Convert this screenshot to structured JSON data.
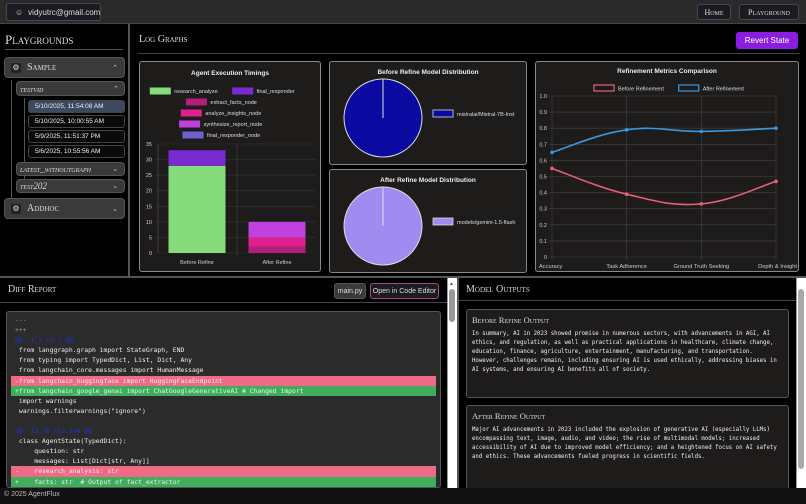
{
  "header": {
    "user_email": "vidyutrc@gmail.com",
    "nav": [
      "Home",
      "Playground"
    ]
  },
  "sidebar": {
    "title": "Playgrounds",
    "groups": [
      {
        "label": "Sample",
        "expanded": true,
        "items": [
          {
            "label": "testvid",
            "expanded": true,
            "runs": [
              "5/10/2025, 11:54:08 AM",
              "5/10/2025, 10:00:55 AM",
              "5/9/2025, 11:51:37 PM",
              "5/6/2025, 10:55:56 AM"
            ],
            "selected_run": 0
          },
          {
            "label": "latest_withoutgraph",
            "expanded": false
          },
          {
            "label": "test202",
            "expanded": false
          }
        ]
      },
      {
        "label": "Addhoc",
        "expanded": false
      }
    ]
  },
  "log_graphs": {
    "title": "Log Graphs",
    "revert_button": "Revert State",
    "accent": "#8a1ee0"
  },
  "chart_data": [
    {
      "type": "bar",
      "stacked": true,
      "title": "Agent Execution Timings",
      "categories": [
        "Before Refine",
        "After Refine"
      ],
      "ylim": [
        0,
        35
      ],
      "yticks": [
        0,
        5,
        10,
        15,
        20,
        25,
        30,
        35
      ],
      "legend": "top",
      "series": [
        {
          "name": "research_analyze",
          "color": "#86dc7c",
          "values": [
            28,
            0
          ]
        },
        {
          "name": "final_responder",
          "color": "#7a2bd0",
          "values": [
            5,
            0
          ]
        },
        {
          "name": "extract_facts_node",
          "color": "#b0207a",
          "values": [
            0,
            2
          ]
        },
        {
          "name": "analyze_insights_node",
          "color": "#e0208c",
          "values": [
            0,
            3
          ]
        },
        {
          "name": "synthesize_report_node",
          "color": "#c040e0",
          "values": [
            0,
            5
          ]
        },
        {
          "name": "final_responder_node",
          "color": "#7060d0",
          "values": [
            0,
            0
          ]
        }
      ]
    },
    {
      "type": "pie",
      "title": "Before Refine Model Distribution",
      "legend": "right",
      "slices": [
        {
          "name": "mistralai/Mistral-7B-Inst",
          "value": 100,
          "color": "#0a0aa0"
        }
      ]
    },
    {
      "type": "pie",
      "title": "After Refine Model Distribution",
      "legend": "right",
      "slices": [
        {
          "name": "models/gemini-1.5-flash",
          "value": 100,
          "color": "#a08cf0"
        }
      ]
    },
    {
      "type": "line",
      "title": "Refinement Metrics Comparison",
      "categories": [
        "Accuracy",
        "Task Adherence",
        "Ground Truth Seeking",
        "Depth & Insight"
      ],
      "ylim": [
        0,
        1
      ],
      "yticks": [
        "0",
        "0.1",
        "0.2",
        "0.3",
        "0.4",
        "0.5",
        "0.6",
        "0.7",
        "0.8",
        "0.9",
        "1.0"
      ],
      "grid": true,
      "legend": "top",
      "series": [
        {
          "name": "Before Refinement",
          "color": "#e8607a",
          "values": [
            0.55,
            0.39,
            0.33,
            0.47
          ]
        },
        {
          "name": "After Refinement",
          "color": "#3a98e0",
          "values": [
            0.65,
            0.79,
            0.78,
            0.8
          ]
        }
      ]
    }
  ],
  "diff": {
    "title": "Diff Report",
    "file_button": "main.py",
    "open_button": "Open in Code Editor",
    "lines": [
      {
        "t": "meta",
        "s": "---"
      },
      {
        "t": "meta",
        "s": "+++"
      },
      {
        "t": "hunk",
        "s": "@@ -1,7 +1,7 @@"
      },
      {
        "t": "ctx",
        "s": " from langgraph.graph import StateGraph, END"
      },
      {
        "t": "ctx",
        "s": " from typing import TypedDict, List, Dict, Any"
      },
      {
        "t": "ctx",
        "s": " from langchain_core.messages import HumanMessage"
      },
      {
        "t": "del",
        "s": "-from langchain_huggingface import HuggingFaceEndpoint"
      },
      {
        "t": "add",
        "s": "+from langchain_google_genai import ChatGoogleGenerativeAI # Changed import"
      },
      {
        "t": "ctx",
        "s": " import warnings"
      },
      {
        "t": "ctx",
        "s": " warnings.filterwarnings(\"ignore\")"
      },
      {
        "t": "ctx",
        "s": " "
      },
      {
        "t": "hunk",
        "s": "@@ -13,70 +13,104 @@"
      },
      {
        "t": "ctx",
        "s": " class AgentState(TypedDict):"
      },
      {
        "t": "ctx",
        "s": "     question: str"
      },
      {
        "t": "ctx",
        "s": "     messages: List[Dict[str, Any]]"
      },
      {
        "t": "del",
        "s": "-    research_analysis: str"
      },
      {
        "t": "add",
        "s": "+    facts: str  # Output of fact_extractor"
      }
    ]
  },
  "outputs": {
    "title": "Model Outputs",
    "before": {
      "title": "Before Refine Output",
      "text": "In summary, AI in 2023 showed promise in numerous sectors, with advancements in AGI, AI ethics, and regulation, as well as practical applications in healthcare, climate change, education, finance, agriculture, entertainment, manufacturing, and transportation. However, challenges remain, including ensuring AI is used ethically, addressing biases in AI systems, and ensuring AI benefits all of society."
    },
    "after": {
      "title": "After Refine Output",
      "text": "Major AI advancements in 2023 included the explosion of generative AI (especially LLMs) encompassing text, image, audio, and video;  the rise of multimodal models; increased accessibility of AI due to improved model efficiency; and a heightened focus on AI safety and ethics.  These advancements fueled progress in scientific fields."
    }
  },
  "footer": {
    "text": "© 2025 AgentFlux"
  }
}
